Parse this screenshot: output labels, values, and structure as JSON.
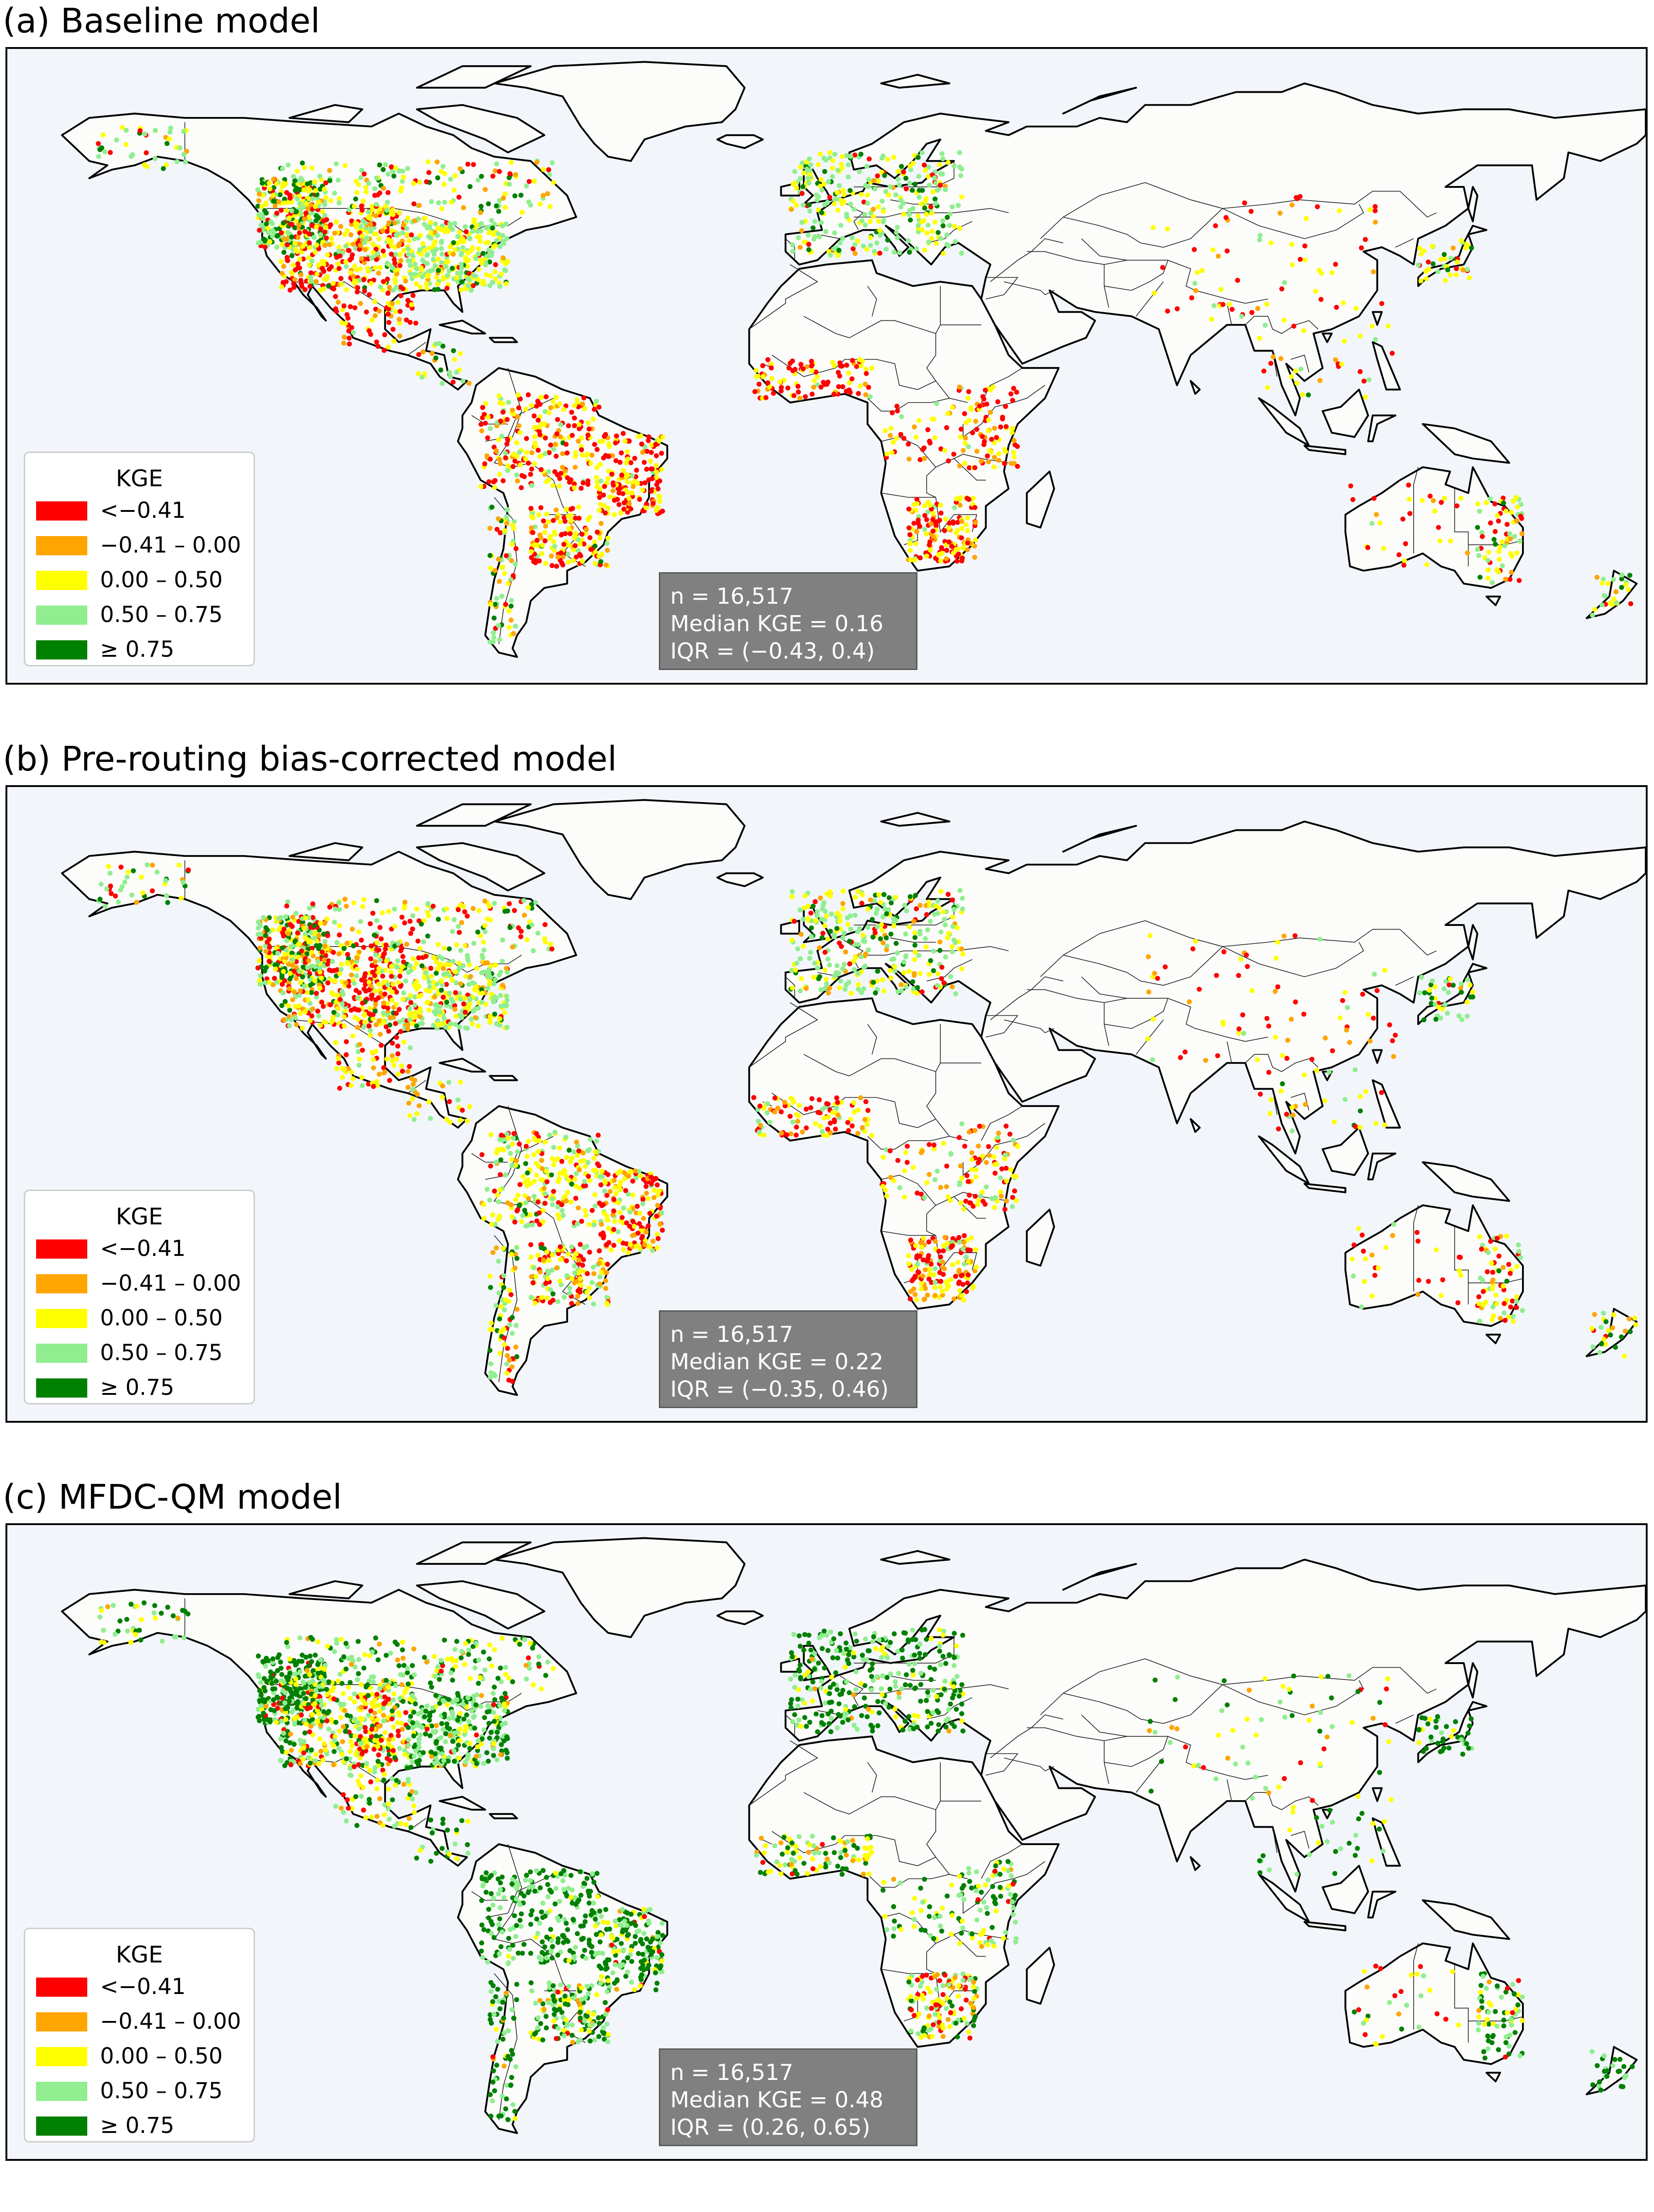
{
  "panels": [
    {
      "title": "(a) Baseline model",
      "stats": {
        "n": "n = 16,517",
        "median": "Median KGE = 0.16",
        "iqr": "IQR = (−0.43, 0.4)"
      }
    },
    {
      "title": "(b) Pre-routing bias-corrected model",
      "stats": {
        "n": "n = 16,517",
        "median": "Median KGE = 0.22",
        "iqr": "IQR = (−0.35, 0.46)"
      }
    },
    {
      "title": "(c) MFDC-QM model",
      "stats": {
        "n": "n = 16,517",
        "median": "Median KGE = 0.48",
        "iqr": "IQR = (0.26, 0.65)"
      }
    }
  ],
  "legend": {
    "title": "KGE",
    "entries": [
      {
        "label": "<−0.41",
        "color": "#ff0000"
      },
      {
        "label": "−0.41 – 0.00",
        "color": "#ffa500"
      },
      {
        "label": "0.00 – 0.50",
        "color": "#ffff00"
      },
      {
        "label": "0.50 – 0.75",
        "color": "#90ee90"
      },
      {
        "label": "≥ 0.75",
        "color": "#008000"
      }
    ]
  },
  "colors": {
    "land": "#fcfcfa",
    "ocean": "#f2f6fb",
    "coast": "#000000",
    "stats_box": "#808080"
  }
}
